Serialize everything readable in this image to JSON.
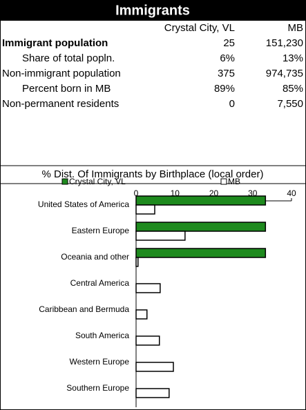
{
  "table": {
    "title": "Immigrants",
    "columns": [
      "Crystal City, VL",
      "MB"
    ],
    "rows": [
      {
        "label": "Immigrant population",
        "values": [
          "25",
          "151,230"
        ]
      },
      {
        "label": "Share of total popln.",
        "values": [
          "6%",
          "13%"
        ]
      },
      {
        "label": "Non-immigrant population",
        "values": [
          "375",
          "974,735"
        ]
      },
      {
        "label": "Percent born in MB",
        "values": [
          "89%",
          "85%"
        ]
      },
      {
        "label": "Non-permanent residents",
        "values": [
          "0",
          "7,550"
        ]
      }
    ]
  },
  "chart_data": {
    "type": "hbar",
    "title": "% Dist. Of Immigrants by Birthplace (local order)",
    "categories": [
      "United States of America",
      "Eastern Europe",
      "Oceania and other",
      "Central America",
      "Caribbean and Bermuda",
      "South America",
      "Western Europe",
      "Southern Europe"
    ],
    "series": [
      {
        "name": "Crystal City, VL",
        "color": "#1e8a1e",
        "values": [
          33.3,
          33.3,
          33.3,
          0,
          0,
          0,
          0,
          0
        ]
      },
      {
        "name": "MB",
        "color": "#ffffff",
        "values": [
          4.8,
          12.6,
          0.5,
          6.2,
          2.8,
          6.0,
          9.6,
          8.5
        ]
      }
    ],
    "xlim": [
      0,
      40
    ],
    "xticks": [
      0,
      10,
      20,
      30,
      40
    ]
  }
}
